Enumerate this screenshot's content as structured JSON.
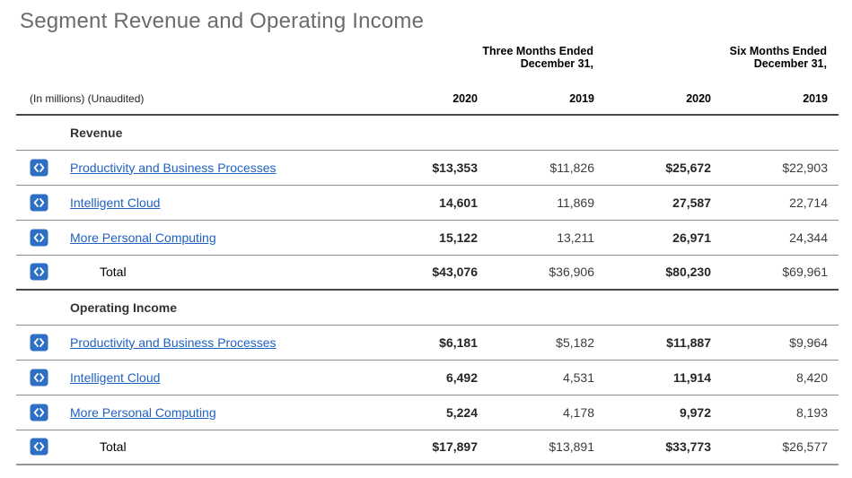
{
  "page": {
    "title": "Segment Revenue and Operating Income",
    "units_note": "(In millions) (Unaudited)"
  },
  "table": {
    "period_headers": [
      {
        "line1": "Three Months Ended",
        "line2": "December 31,"
      },
      {
        "line1": "Six Months Ended",
        "line2": "December 31,"
      }
    ],
    "year_headers": [
      "2020",
      "2019",
      "2020",
      "2019"
    ],
    "sections": [
      {
        "header": "Revenue",
        "rows": [
          {
            "label": "Productivity and Business Processes",
            "link": true,
            "total": false,
            "values": [
              "$13,353",
              "$11,826",
              "$25,672",
              "$22,903"
            ]
          },
          {
            "label": "Intelligent Cloud",
            "link": true,
            "total": false,
            "values": [
              "14,601",
              "11,869",
              "27,587",
              "22,714"
            ]
          },
          {
            "label": "More Personal Computing",
            "link": true,
            "total": false,
            "values": [
              "15,122",
              "13,211",
              "26,971",
              "24,344"
            ]
          },
          {
            "label": "Total",
            "link": false,
            "total": true,
            "values": [
              "$43,076",
              "$36,906",
              "$80,230",
              "$69,961"
            ]
          }
        ]
      },
      {
        "header": "Operating Income",
        "rows": [
          {
            "label": "Productivity and Business Processes",
            "link": true,
            "total": false,
            "values": [
              "$6,181",
              "$5,182",
              "$11,887",
              "$9,964"
            ]
          },
          {
            "label": "Intelligent Cloud",
            "link": true,
            "total": false,
            "values": [
              "6,492",
              "4,531",
              "11,914",
              "8,420"
            ]
          },
          {
            "label": "More Personal Computing",
            "link": true,
            "total": false,
            "values": [
              "5,224",
              "4,178",
              "9,972",
              "8,193"
            ]
          },
          {
            "label": "Total",
            "link": false,
            "total": true,
            "values": [
              "$17,897",
              "$13,891",
              "$33,773",
              "$26,577"
            ]
          }
        ]
      }
    ],
    "icon": {
      "name": "xbrl-tag-icon",
      "glyph": "<>"
    },
    "colors": {
      "icon_blue": "#2d6fc5",
      "link_blue": "#2062c2",
      "title_gray": "#6b6b6b"
    }
  }
}
